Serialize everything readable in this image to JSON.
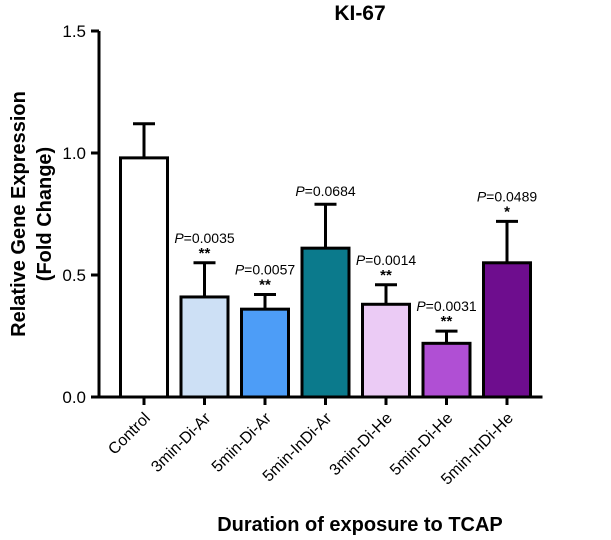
{
  "chart_data": {
    "type": "bar",
    "title": "KI-67",
    "xlabel": "Duration of exposure to TCAP",
    "ylabel_line1": "Relative Gene Expression",
    "ylabel_line2": "(Fold Change)",
    "ylim": [
      0,
      1.5
    ],
    "yticks": [
      "0.0",
      "0.5",
      "1.0",
      "1.5"
    ],
    "categories": [
      "Control",
      "3min-Di-Ar",
      "5min-Di-Ar",
      "5min-InDi-Ar",
      "3min-Di-He",
      "5min-Di-He",
      "5min-InDi-He"
    ],
    "values": [
      0.98,
      0.41,
      0.36,
      0.61,
      0.38,
      0.22,
      0.55
    ],
    "errors": [
      0.14,
      0.14,
      0.06,
      0.18,
      0.08,
      0.05,
      0.17
    ],
    "colors": [
      "#ffffff",
      "#cde0f5",
      "#4d9df7",
      "#0b7a8c",
      "#ebcbf5",
      "#b04fd4",
      "#6e0d8e"
    ],
    "p_values": [
      "",
      "=0.0035",
      "=0.0057",
      "=0.0684",
      "=0.0014",
      "=0.0031",
      "=0.0489"
    ],
    "p_symbol": "P",
    "significance": [
      "",
      "**",
      "**",
      "",
      "**",
      "**",
      "*"
    ]
  }
}
